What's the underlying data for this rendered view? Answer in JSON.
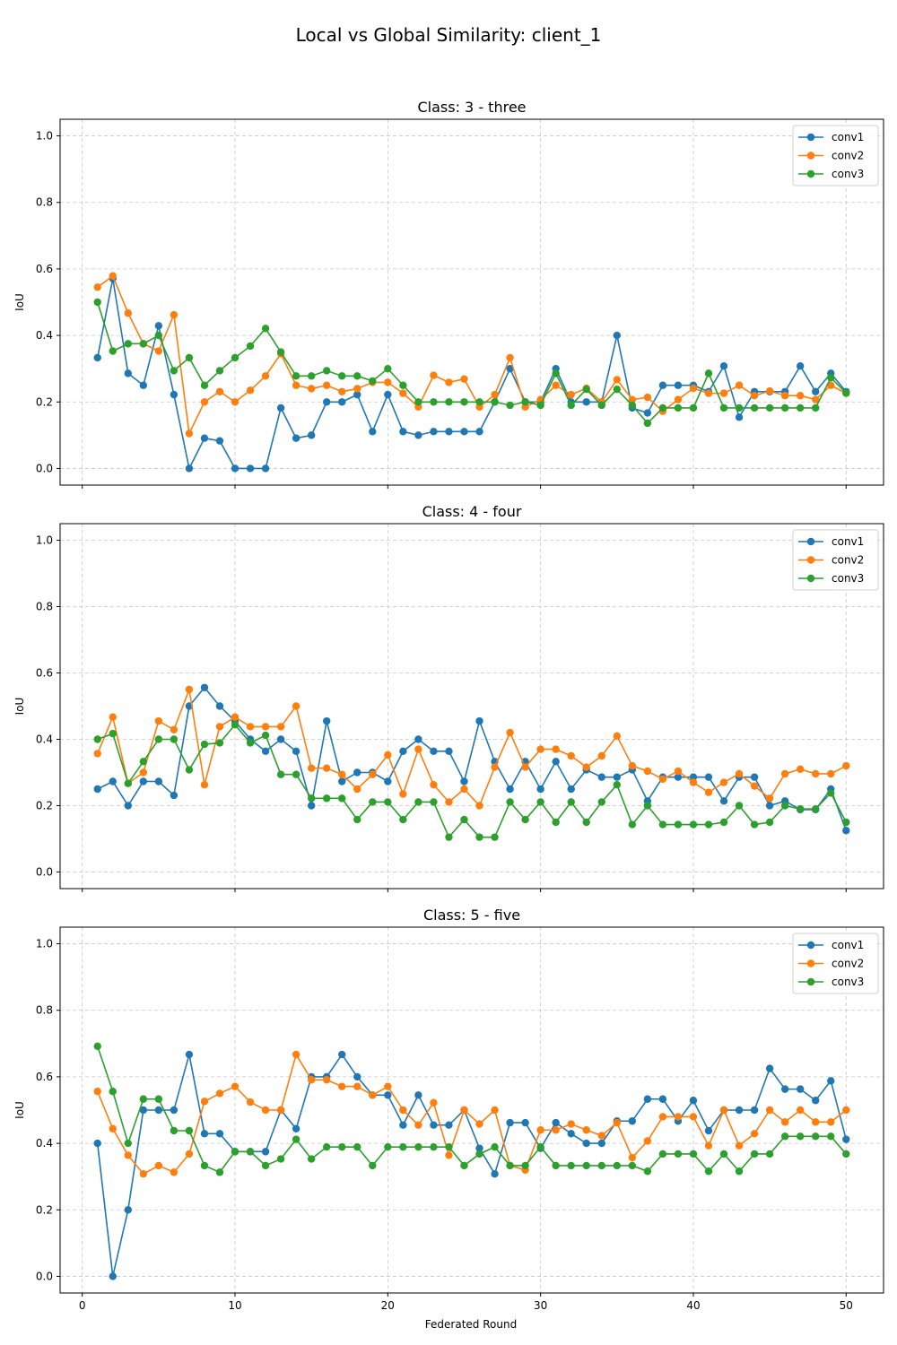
{
  "figure": {
    "title": "Local vs Global Similarity: client_1",
    "xlabel": "Federated Round"
  },
  "colors": {
    "conv1": "#1f77b4",
    "conv2": "#ff7f0e",
    "conv3": "#2ca02c",
    "grid": "#b0b0b0"
  },
  "chart_data": [
    {
      "type": "line",
      "title": "Class: 3 - three",
      "xlabel": "",
      "ylabel": "IoU",
      "xlim": [
        -1.45,
        52.45
      ],
      "ylim": [
        -0.05,
        1.05
      ],
      "xticks": [
        0,
        10,
        20,
        30,
        40,
        50
      ],
      "yticks": [
        0.0,
        0.2,
        0.4,
        0.6,
        0.8,
        1.0
      ],
      "ytick_labels": [
        "0.0",
        "0.2",
        "0.4",
        "0.6",
        "0.8",
        "1.0"
      ],
      "grid": true,
      "legend": "top-right",
      "x": [
        1,
        2,
        3,
        4,
        5,
        6,
        7,
        8,
        9,
        10,
        11,
        12,
        13,
        14,
        15,
        16,
        17,
        18,
        19,
        20,
        21,
        22,
        23,
        24,
        25,
        26,
        27,
        28,
        29,
        30,
        31,
        32,
        33,
        34,
        35,
        36,
        37,
        38,
        39,
        40,
        41,
        42,
        43,
        44,
        45,
        46,
        47,
        48,
        49,
        50
      ],
      "series": [
        {
          "name": "conv1",
          "values": [
            0.333,
            0.571,
            0.286,
            0.25,
            0.429,
            0.222,
            0.0,
            0.091,
            0.083,
            0.0,
            0.0,
            0.0,
            0.182,
            0.091,
            0.1,
            0.2,
            0.2,
            0.222,
            0.111,
            0.222,
            0.111,
            0.1,
            0.111,
            0.111,
            0.111,
            0.111,
            0.2,
            0.3,
            0.2,
            0.2,
            0.3,
            0.2,
            0.2,
            0.2,
            0.4,
            0.182,
            0.167,
            0.25,
            0.25,
            0.25,
            0.231,
            0.308,
            0.154,
            0.231,
            0.231,
            0.231,
            0.308,
            0.231,
            0.286,
            0.231
          ]
        },
        {
          "name": "conv2",
          "values": [
            0.545,
            0.579,
            0.467,
            0.375,
            0.353,
            0.462,
            0.105,
            0.2,
            0.231,
            0.2,
            0.235,
            0.278,
            0.345,
            0.25,
            0.24,
            0.25,
            0.231,
            0.24,
            0.259,
            0.259,
            0.226,
            0.185,
            0.28,
            0.259,
            0.269,
            0.185,
            0.222,
            0.333,
            0.185,
            0.207,
            0.25,
            0.222,
            0.241,
            0.2,
            0.267,
            0.207,
            0.214,
            0.172,
            0.207,
            0.241,
            0.226,
            0.226,
            0.25,
            0.219,
            0.233,
            0.219,
            0.219,
            0.207,
            0.25,
            0.226
          ]
        },
        {
          "name": "conv3",
          "values": [
            0.5,
            0.353,
            0.375,
            0.375,
            0.4,
            0.294,
            0.333,
            0.25,
            0.294,
            0.333,
            0.368,
            0.421,
            0.35,
            0.278,
            0.278,
            0.294,
            0.278,
            0.278,
            0.263,
            0.3,
            0.25,
            0.2,
            0.2,
            0.2,
            0.2,
            0.2,
            0.2,
            0.19,
            0.2,
            0.19,
            0.286,
            0.19,
            0.238,
            0.19,
            0.238,
            0.19,
            0.136,
            0.182,
            0.182,
            0.182,
            0.286,
            0.182,
            0.182,
            0.182,
            0.182,
            0.182,
            0.182,
            0.182,
            0.273,
            0.227
          ]
        }
      ]
    },
    {
      "type": "line",
      "title": "Class: 4 - four",
      "xlabel": "",
      "ylabel": "IoU",
      "xlim": [
        -1.45,
        52.45
      ],
      "ylim": [
        -0.05,
        1.05
      ],
      "xticks": [
        0,
        10,
        20,
        30,
        40,
        50
      ],
      "yticks": [
        0.0,
        0.2,
        0.4,
        0.6,
        0.8,
        1.0
      ],
      "ytick_labels": [
        "0.0",
        "0.2",
        "0.4",
        "0.6",
        "0.8",
        "1.0"
      ],
      "grid": true,
      "legend": "top-right",
      "x": [
        1,
        2,
        3,
        4,
        5,
        6,
        7,
        8,
        9,
        10,
        11,
        12,
        13,
        14,
        15,
        16,
        17,
        18,
        19,
        20,
        21,
        22,
        23,
        24,
        25,
        26,
        27,
        28,
        29,
        30,
        31,
        32,
        33,
        34,
        35,
        36,
        37,
        38,
        39,
        40,
        41,
        42,
        43,
        44,
        45,
        46,
        47,
        48,
        49,
        50
      ],
      "series": [
        {
          "name": "conv1",
          "values": [
            0.25,
            0.273,
            0.2,
            0.273,
            0.273,
            0.231,
            0.5,
            0.556,
            0.5,
            0.455,
            0.4,
            0.364,
            0.4,
            0.364,
            0.2,
            0.455,
            0.273,
            0.3,
            0.3,
            0.273,
            0.364,
            0.4,
            0.364,
            0.364,
            0.273,
            0.455,
            0.333,
            0.25,
            0.333,
            0.25,
            0.333,
            0.25,
            0.308,
            0.286,
            0.286,
            0.308,
            0.214,
            0.286,
            0.286,
            0.286,
            0.286,
            0.214,
            0.286,
            0.286,
            0.2,
            0.214,
            0.188,
            0.188,
            0.25,
            0.125
          ]
        },
        {
          "name": "conv2",
          "values": [
            0.357,
            0.467,
            0.267,
            0.3,
            0.455,
            0.429,
            0.55,
            0.263,
            0.438,
            0.467,
            0.438,
            0.438,
            0.438,
            0.5,
            0.313,
            0.313,
            0.294,
            0.25,
            0.294,
            0.353,
            0.235,
            0.37,
            0.263,
            0.211,
            0.25,
            0.2,
            0.316,
            0.42,
            0.316,
            0.37,
            0.37,
            0.35,
            0.316,
            0.35,
            0.41,
            0.32,
            0.304,
            0.28,
            0.304,
            0.27,
            0.24,
            0.27,
            0.296,
            0.259,
            0.222,
            0.296,
            0.31,
            0.296,
            0.296,
            0.32
          ]
        },
        {
          "name": "conv3",
          "values": [
            0.4,
            0.417,
            0.267,
            0.333,
            0.4,
            0.4,
            0.308,
            0.385,
            0.389,
            0.444,
            0.389,
            0.412,
            0.294,
            0.294,
            0.222,
            0.222,
            0.222,
            0.158,
            0.211,
            0.211,
            0.158,
            0.211,
            0.211,
            0.105,
            0.158,
            0.105,
            0.105,
            0.211,
            0.158,
            0.211,
            0.15,
            0.211,
            0.15,
            0.211,
            0.263,
            0.143,
            0.2,
            0.143,
            0.143,
            0.143,
            0.143,
            0.15,
            0.2,
            0.143,
            0.15,
            0.2,
            0.19,
            0.19,
            0.238,
            0.15
          ]
        }
      ]
    },
    {
      "type": "line",
      "title": "Class: 5 - five",
      "xlabel": "Federated Round",
      "ylabel": "IoU",
      "xlim": [
        -1.45,
        52.45
      ],
      "ylim": [
        -0.05,
        1.05
      ],
      "xticks": [
        0,
        10,
        20,
        30,
        40,
        50
      ],
      "yticks": [
        0.0,
        0.2,
        0.4,
        0.6,
        0.8,
        1.0
      ],
      "ytick_labels": [
        "0.0",
        "0.2",
        "0.4",
        "0.6",
        "0.8",
        "1.0"
      ],
      "grid": true,
      "legend": "top-right",
      "x": [
        1,
        2,
        3,
        4,
        5,
        6,
        7,
        8,
        9,
        10,
        11,
        12,
        13,
        14,
        15,
        16,
        17,
        18,
        19,
        20,
        21,
        22,
        23,
        24,
        25,
        26,
        27,
        28,
        29,
        30,
        31,
        32,
        33,
        34,
        35,
        36,
        37,
        38,
        39,
        40,
        41,
        42,
        43,
        44,
        45,
        46,
        47,
        48,
        49,
        50
      ],
      "series": [
        {
          "name": "conv1",
          "values": [
            0.4,
            0.0,
            0.2,
            0.5,
            0.5,
            0.5,
            0.667,
            0.429,
            0.429,
            0.375,
            0.375,
            0.375,
            0.5,
            0.444,
            0.6,
            0.6,
            0.667,
            0.6,
            0.545,
            0.545,
            0.455,
            0.545,
            0.455,
            0.455,
            0.5,
            0.385,
            0.308,
            0.462,
            0.462,
            0.385,
            0.462,
            0.429,
            0.4,
            0.4,
            0.467,
            0.467,
            0.533,
            0.533,
            0.467,
            0.529,
            0.438,
            0.5,
            0.5,
            0.5,
            0.625,
            0.563,
            0.563,
            0.529,
            0.588,
            0.412
          ]
        },
        {
          "name": "conv2",
          "values": [
            0.556,
            0.444,
            0.364,
            0.308,
            0.333,
            0.313,
            0.368,
            0.526,
            0.55,
            0.571,
            0.524,
            0.5,
            0.5,
            0.667,
            0.591,
            0.591,
            0.571,
            0.571,
            0.545,
            0.571,
            0.5,
            0.455,
            0.522,
            0.364,
            0.5,
            0.458,
            0.5,
            0.333,
            0.32,
            0.44,
            0.44,
            0.458,
            0.44,
            0.423,
            0.462,
            0.357,
            0.407,
            0.48,
            0.48,
            0.48,
            0.393,
            0.5,
            0.393,
            0.429,
            0.5,
            0.464,
            0.5,
            0.464,
            0.464,
            0.5
          ]
        },
        {
          "name": "conv3",
          "values": [
            0.692,
            0.556,
            0.4,
            0.533,
            0.533,
            0.438,
            0.438,
            0.333,
            0.313,
            0.375,
            0.375,
            0.333,
            0.353,
            0.412,
            0.353,
            0.389,
            0.389,
            0.389,
            0.333,
            0.389,
            0.389,
            0.389,
            0.389,
            0.389,
            0.333,
            0.368,
            0.389,
            0.333,
            0.333,
            0.389,
            0.333,
            0.333,
            0.333,
            0.333,
            0.333,
            0.333,
            0.316,
            0.368,
            0.368,
            0.368,
            0.316,
            0.368,
            0.316,
            0.368,
            0.368,
            0.421,
            0.421,
            0.421,
            0.421,
            0.368
          ]
        }
      ]
    }
  ]
}
